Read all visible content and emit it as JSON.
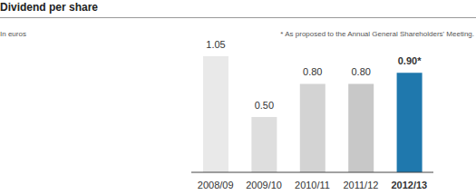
{
  "chart_data": {
    "type": "bar",
    "title": "Dividend per share",
    "subtitle": "In euros",
    "annotation": "* As proposed to the Annual General Shareholders' Meeting.",
    "categories": [
      "2008/09",
      "2009/10",
      "2010/11",
      "2011/12",
      "2012/13"
    ],
    "values": [
      1.05,
      0.5,
      0.8,
      0.8,
      0.9
    ],
    "value_labels": [
      "1.05",
      "0.50",
      "0.80",
      "0.80",
      "0.90*"
    ],
    "colors": [
      "#e9e9e9",
      "#dedede",
      "#d3d3d3",
      "#c8c8c8",
      "#1f78ad"
    ],
    "ylim": [
      0,
      1.05
    ],
    "data_labels": true,
    "tick_labels": "x"
  }
}
